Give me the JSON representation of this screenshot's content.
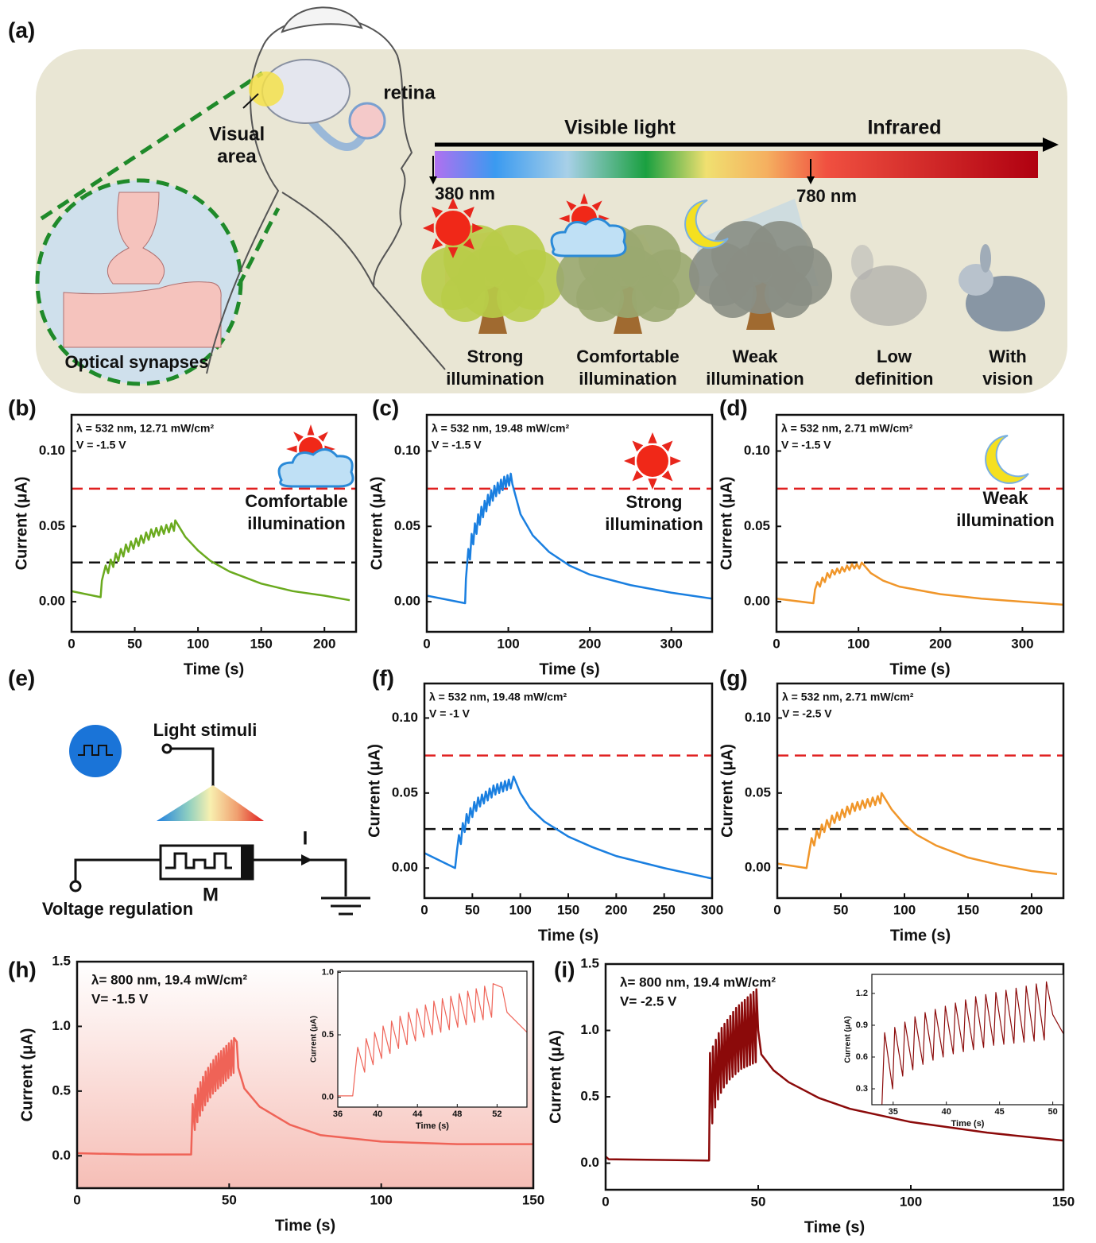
{
  "panel_a": {
    "label": "(a)",
    "retina": "retina",
    "visual_area": [
      "Visual",
      "area"
    ],
    "synapse": "Optical synapses",
    "spectrum": {
      "visible": "Visible light",
      "infrared": "Infrared",
      "start": "380 nm",
      "end": "780 nm"
    },
    "captions": [
      [
        "Strong",
        "illumination"
      ],
      [
        "Comfortable",
        "illumination"
      ],
      [
        "Weak",
        "illumination"
      ],
      [
        "Low",
        "definition"
      ],
      [
        "With",
        "vision"
      ]
    ]
  },
  "panel_e": {
    "label": "(e)",
    "light": "Light stimuli",
    "voltage": "Voltage regulation",
    "current": "I",
    "device": "M"
  },
  "chart_data": [
    {
      "type": "line",
      "panel_label": "(b)",
      "xlabel": "Time (s)",
      "ylabel": "Current (μA)",
      "annotations": [
        "λ = 532 nm, 12.71 mW/cm²",
        "V = -1.5 V"
      ],
      "annotation_color": "#2f6e14",
      "label_lines": [
        "Comfortable",
        "illumination"
      ],
      "color": "#6aaa1e",
      "reference_lines": [
        {
          "value": 0.075,
          "color": "#e02020"
        },
        {
          "value": 0.026,
          "color": "#111111"
        }
      ],
      "xlim": [
        0,
        225
      ],
      "ylim": [
        -0.02,
        0.124
      ],
      "xticks": [
        0,
        50,
        100,
        150,
        200
      ],
      "yticks": [
        {
          "value": 0,
          "label": "0.00"
        },
        {
          "value": 0.05,
          "label": "0.05"
        },
        {
          "value": 0.1,
          "label": "0.10"
        }
      ],
      "x": [
        0,
        23,
        24,
        27,
        29,
        31,
        33,
        35,
        37,
        39,
        41,
        43,
        45,
        47,
        49,
        51,
        53,
        55,
        57,
        59,
        61,
        63,
        65,
        67,
        69,
        71,
        73,
        75,
        77,
        79,
        81,
        82,
        90,
        100,
        110,
        125,
        150,
        175,
        200,
        220
      ],
      "values": [
        0.007,
        0.003,
        0.014,
        0.024,
        0.019,
        0.028,
        0.023,
        0.032,
        0.027,
        0.035,
        0.03,
        0.038,
        0.033,
        0.04,
        0.035,
        0.042,
        0.037,
        0.044,
        0.039,
        0.046,
        0.041,
        0.048,
        0.043,
        0.049,
        0.044,
        0.05,
        0.045,
        0.051,
        0.046,
        0.052,
        0.047,
        0.054,
        0.043,
        0.034,
        0.027,
        0.02,
        0.012,
        0.007,
        0.004,
        0.001
      ]
    },
    {
      "type": "line",
      "panel_label": "(c)",
      "xlabel": "Time (s)",
      "ylabel": "Current (μA)",
      "annotations": [
        "λ = 532 nm, 19.48 mW/cm²",
        "V = -1.5 V"
      ],
      "annotation_color": "#1e7fd6",
      "label_lines": [
        "Strong",
        "illumination"
      ],
      "color": "#1a7fe0",
      "reference_lines": [
        {
          "value": 0.075,
          "color": "#e02020"
        },
        {
          "value": 0.026,
          "color": "#111111"
        }
      ],
      "xlim": [
        0,
        350
      ],
      "ylim": [
        -0.02,
        0.124
      ],
      "xticks": [
        0,
        100,
        200,
        300
      ],
      "yticks": [
        {
          "value": 0,
          "label": "0.00"
        },
        {
          "value": 0.05,
          "label": "0.05"
        },
        {
          "value": 0.1,
          "label": "0.10"
        }
      ],
      "x": [
        0,
        47,
        48,
        51,
        53,
        55,
        57,
        59,
        61,
        63,
        65,
        67,
        69,
        71,
        73,
        75,
        77,
        79,
        81,
        83,
        85,
        87,
        89,
        91,
        93,
        95,
        97,
        99,
        101,
        103,
        105,
        115,
        130,
        150,
        175,
        200,
        250,
        300,
        350
      ],
      "values": [
        0.004,
        -0.001,
        0.015,
        0.035,
        0.028,
        0.045,
        0.038,
        0.052,
        0.045,
        0.058,
        0.051,
        0.063,
        0.056,
        0.067,
        0.06,
        0.071,
        0.064,
        0.074,
        0.067,
        0.077,
        0.07,
        0.079,
        0.072,
        0.081,
        0.074,
        0.083,
        0.076,
        0.084,
        0.077,
        0.085,
        0.078,
        0.058,
        0.044,
        0.033,
        0.024,
        0.018,
        0.011,
        0.006,
        0.002
      ]
    },
    {
      "type": "line",
      "panel_label": "(d)",
      "xlabel": "Time (s)",
      "ylabel": "Current (μA)",
      "annotations": [
        "λ = 532 nm, 2.71 mW/cm²",
        "V = -1.5 V"
      ],
      "annotation_color": "#f0962a",
      "label_lines": [
        "Weak",
        "illumination"
      ],
      "color": "#f0962a",
      "reference_lines": [
        {
          "value": 0.075,
          "color": "#e02020"
        },
        {
          "value": 0.026,
          "color": "#111111"
        }
      ],
      "xlim": [
        0,
        350
      ],
      "ylim": [
        -0.02,
        0.124
      ],
      "xticks": [
        0,
        100,
        200,
        300
      ],
      "yticks": [
        {
          "value": 0,
          "label": "0.00"
        },
        {
          "value": 0.05,
          "label": "0.05"
        },
        {
          "value": 0.1,
          "label": "0.10"
        }
      ],
      "x": [
        0,
        45,
        47,
        50,
        53,
        56,
        59,
        62,
        65,
        68,
        71,
        74,
        77,
        80,
        83,
        86,
        89,
        92,
        95,
        98,
        101,
        104,
        115,
        130,
        150,
        200,
        250,
        300,
        350
      ],
      "values": [
        0.002,
        -0.001,
        0.008,
        0.013,
        0.01,
        0.016,
        0.013,
        0.019,
        0.016,
        0.021,
        0.018,
        0.022,
        0.019,
        0.023,
        0.02,
        0.024,
        0.021,
        0.025,
        0.022,
        0.025,
        0.022,
        0.026,
        0.019,
        0.014,
        0.01,
        0.005,
        0.002,
        0.0,
        -0.002
      ]
    },
    {
      "type": "line",
      "panel_label": "(f)",
      "xlabel": "Time (s)",
      "ylabel": "Current (μA)",
      "annotations": [
        "λ = 532 nm, 19.48 mW/cm²",
        "V = -1 V"
      ],
      "annotation_color": "#1e7fd6",
      "color": "#1a7fe0",
      "reference_lines": [
        {
          "value": 0.075,
          "color": "#e02020"
        },
        {
          "value": 0.026,
          "color": "#111111"
        }
      ],
      "xlim": [
        0,
        300
      ],
      "ylim": [
        -0.02,
        0.123
      ],
      "xticks": [
        0,
        50,
        100,
        150,
        200,
        250,
        300
      ],
      "yticks": [
        {
          "value": 0,
          "label": "0.00"
        },
        {
          "value": 0.05,
          "label": "0.05"
        },
        {
          "value": 0.1,
          "label": "0.10"
        }
      ],
      "x": [
        0,
        32,
        34,
        36,
        38,
        40,
        42,
        44,
        46,
        48,
        50,
        52,
        54,
        56,
        58,
        60,
        62,
        64,
        66,
        68,
        70,
        72,
        74,
        76,
        78,
        80,
        82,
        84,
        86,
        88,
        90,
        93,
        100,
        110,
        125,
        150,
        175,
        200,
        250,
        300
      ],
      "values": [
        0.01,
        0.0,
        0.012,
        0.022,
        0.016,
        0.03,
        0.024,
        0.036,
        0.03,
        0.04,
        0.034,
        0.044,
        0.038,
        0.047,
        0.041,
        0.049,
        0.043,
        0.051,
        0.045,
        0.053,
        0.047,
        0.055,
        0.049,
        0.056,
        0.05,
        0.057,
        0.051,
        0.058,
        0.052,
        0.059,
        0.053,
        0.061,
        0.05,
        0.04,
        0.031,
        0.021,
        0.014,
        0.008,
        0.0,
        -0.007
      ]
    },
    {
      "type": "line",
      "panel_label": "(g)",
      "xlabel": "Time (s)",
      "ylabel": "Current (μA)",
      "annotations": [
        "λ = 532 nm, 2.71 mW/cm²",
        "V = -2.5 V"
      ],
      "annotation_color": "#f0962a",
      "color": "#f0962a",
      "reference_lines": [
        {
          "value": 0.075,
          "color": "#e02020"
        },
        {
          "value": 0.026,
          "color": "#111111"
        }
      ],
      "xlim": [
        0,
        225
      ],
      "ylim": [
        -0.02,
        0.123
      ],
      "xticks": [
        0,
        50,
        100,
        150,
        200
      ],
      "yticks": [
        {
          "value": 0,
          "label": "0.00"
        },
        {
          "value": 0.05,
          "label": "0.05"
        },
        {
          "value": 0.1,
          "label": "0.10"
        }
      ],
      "x": [
        0,
        23,
        25,
        27,
        29,
        31,
        33,
        35,
        37,
        39,
        41,
        43,
        45,
        47,
        49,
        51,
        53,
        55,
        57,
        59,
        61,
        63,
        65,
        67,
        69,
        71,
        73,
        75,
        77,
        79,
        81,
        82,
        90,
        100,
        110,
        125,
        150,
        175,
        200,
        220
      ],
      "values": [
        0.003,
        0.0,
        0.01,
        0.02,
        0.015,
        0.025,
        0.02,
        0.029,
        0.024,
        0.032,
        0.027,
        0.035,
        0.03,
        0.037,
        0.032,
        0.039,
        0.034,
        0.041,
        0.036,
        0.043,
        0.038,
        0.044,
        0.039,
        0.045,
        0.04,
        0.046,
        0.041,
        0.047,
        0.042,
        0.048,
        0.043,
        0.05,
        0.039,
        0.029,
        0.022,
        0.015,
        0.007,
        0.002,
        -0.002,
        -0.004
      ]
    },
    {
      "type": "line",
      "panel_label": "(h)",
      "xlabel": "Time (s)",
      "ylabel": "Current (μA)",
      "annotations": [
        "λ= 800 nm, 19.4 mW/cm²",
        "V= -1.5 V"
      ],
      "annotation_color": "#111111",
      "color": "#ef6357",
      "xlim": [
        0,
        150
      ],
      "ylim": [
        -0.25,
        1.5
      ],
      "xticks": [
        0,
        50,
        100,
        150
      ],
      "yticks": [
        {
          "value": 0,
          "label": "0.0"
        },
        0.5,
        {
          "value": 1,
          "label": "1.0"
        },
        1.5
      ],
      "inset": {
        "xlabel": "Time (s)",
        "ylabel": "Current (μA)",
        "xlim": [
          36,
          55
        ],
        "ylim": [
          -0.08,
          1.01
        ],
        "xticks": [
          36,
          40,
          44,
          48,
          52
        ],
        "yticks": [
          {
            "value": 0,
            "label": "0.0"
          },
          0.5,
          {
            "value": 1,
            "label": "1.0"
          }
        ]
      },
      "x": [
        0,
        20,
        37.5,
        38,
        38.7,
        38.85,
        39.55,
        39.7,
        40.4,
        40.55,
        41.25,
        41.4,
        42.1,
        42.25,
        42.95,
        43.1,
        43.8,
        43.95,
        44.65,
        44.8,
        45.5,
        45.65,
        46.35,
        46.5,
        47.2,
        47.35,
        48.05,
        48.2,
        48.9,
        49.05,
        49.75,
        49.9,
        50.6,
        50.75,
        51.45,
        51.6,
        52.5,
        53,
        55,
        60,
        70,
        80,
        100,
        125,
        150
      ],
      "values": [
        0.02,
        0.01,
        0.01,
        0.4,
        0.2,
        0.47,
        0.26,
        0.52,
        0.31,
        0.57,
        0.35,
        0.61,
        0.39,
        0.65,
        0.42,
        0.68,
        0.45,
        0.71,
        0.48,
        0.74,
        0.5,
        0.77,
        0.52,
        0.79,
        0.54,
        0.81,
        0.56,
        0.83,
        0.58,
        0.85,
        0.6,
        0.87,
        0.62,
        0.89,
        0.64,
        0.91,
        0.88,
        0.68,
        0.52,
        0.38,
        0.24,
        0.16,
        0.11,
        0.09,
        0.09
      ]
    },
    {
      "type": "line",
      "panel_label": "(i)",
      "xlabel": "Time (s)",
      "ylabel": "Current (μA)",
      "annotations": [
        "λ= 800 nm, 19.4 mW/cm²",
        "V= -2.5 V"
      ],
      "annotation_color": "#111111",
      "color": "#8b0a0a",
      "xlim": [
        0,
        150
      ],
      "ylim": [
        -0.2,
        1.5
      ],
      "xticks": [
        0,
        50,
        100,
        150
      ],
      "yticks": [
        {
          "value": 0,
          "label": "0.0"
        },
        0.5,
        {
          "value": 1,
          "label": "1.0"
        },
        1.5
      ],
      "inset": {
        "xlabel": "Time (s)",
        "ylabel": "Current (μA)",
        "xlim": [
          33,
          51
        ],
        "ylim": [
          0.15,
          1.38
        ],
        "xticks": [
          35,
          40,
          45,
          50
        ],
        "yticks": [
          0.3,
          0.6,
          0.9,
          1.2
        ]
      },
      "x": [
        0,
        1,
        33.9,
        34.2,
        34.95,
        35.15,
        35.9,
        36.1,
        36.85,
        37.05,
        37.8,
        38,
        38.75,
        38.95,
        39.7,
        39.9,
        40.65,
        40.85,
        41.6,
        41.8,
        42.55,
        42.75,
        43.5,
        43.7,
        44.45,
        44.65,
        45.4,
        45.6,
        46.35,
        46.55,
        47.3,
        47.5,
        48.25,
        48.45,
        49.2,
        49.4,
        50,
        51,
        55,
        60,
        70,
        80,
        100,
        125,
        150
      ],
      "values": [
        0.05,
        0.03,
        0.02,
        0.83,
        0.3,
        0.88,
        0.42,
        0.93,
        0.48,
        0.98,
        0.53,
        1.02,
        0.57,
        1.05,
        0.6,
        1.08,
        0.63,
        1.11,
        0.65,
        1.14,
        0.67,
        1.17,
        0.69,
        1.19,
        0.71,
        1.21,
        0.72,
        1.23,
        0.73,
        1.25,
        0.74,
        1.27,
        0.75,
        1.29,
        0.76,
        1.31,
        1.0,
        0.82,
        0.7,
        0.61,
        0.49,
        0.41,
        0.31,
        0.23,
        0.17
      ]
    }
  ]
}
